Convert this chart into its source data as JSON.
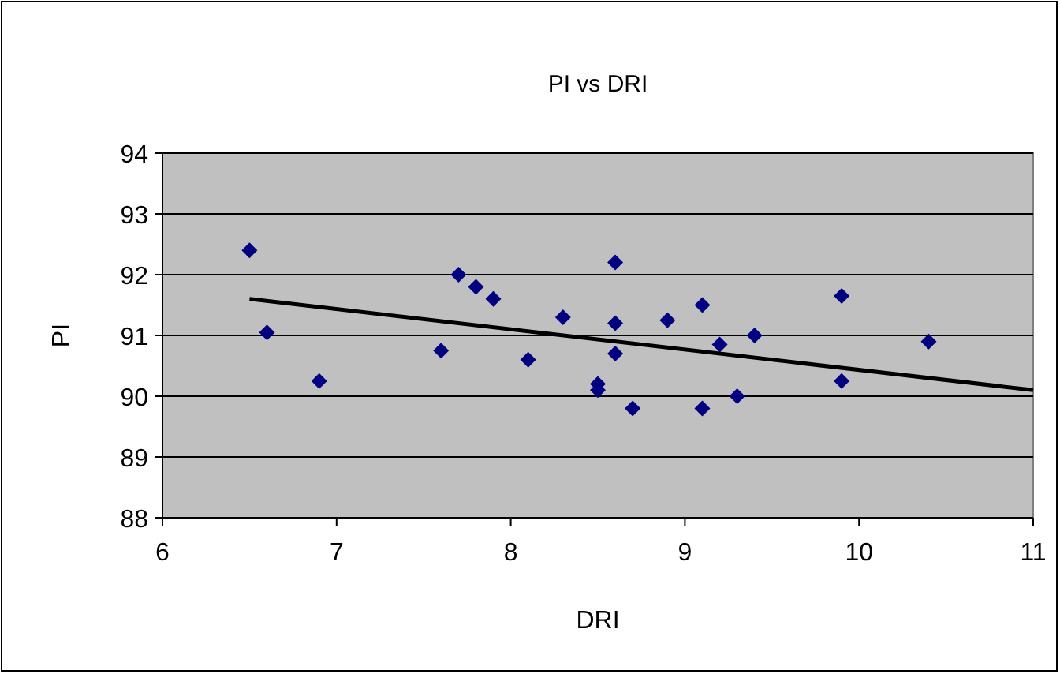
{
  "chart_data": {
    "type": "scatter",
    "title": "PI vs DRI",
    "xlabel": "DRI",
    "ylabel": "PI",
    "xlim": [
      6,
      11
    ],
    "xticks": [
      6,
      7,
      8,
      9,
      10,
      11
    ],
    "ylim": [
      88,
      94
    ],
    "yticks": [
      88,
      89,
      90,
      91,
      92,
      93,
      94
    ],
    "grid": "y",
    "series": [
      {
        "color": "#000080",
        "marker": "diamond",
        "x": [
          6.5,
          6.6,
          6.9,
          7.6,
          7.7,
          7.8,
          7.9,
          8.1,
          8.3,
          8.5,
          8.5,
          8.6,
          8.6,
          8.6,
          8.7,
          8.9,
          9.1,
          9.1,
          9.2,
          9.3,
          9.4,
          9.9,
          9.9,
          10.4
        ],
        "values": [
          92.4,
          91.05,
          90.25,
          90.75,
          92.0,
          91.8,
          91.6,
          90.6,
          91.3,
          90.2,
          90.1,
          92.2,
          91.2,
          90.7,
          89.8,
          91.25,
          91.5,
          89.8,
          90.85,
          90.0,
          91.0,
          91.65,
          90.25,
          90.9
        ]
      },
      {
        "type": "line",
        "color": "#000000",
        "x": [
          6.5,
          11
        ],
        "values": [
          91.6,
          90.1
        ]
      }
    ]
  }
}
